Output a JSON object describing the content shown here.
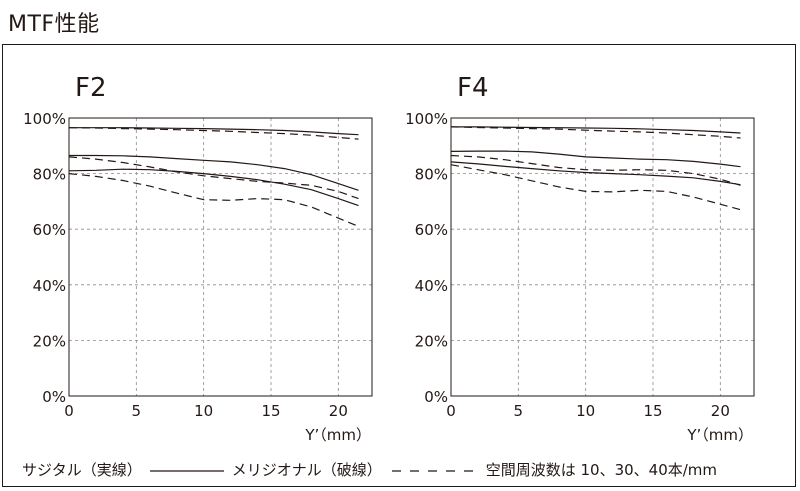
{
  "page_title": "MTF性能",
  "legend": {
    "solid_label": "サジタル（実線）",
    "dashed_label": "メリジオナル（破線）",
    "frequency_note": "空間周波数は 10、30、40本/mm"
  },
  "colors": {
    "line": "#231815",
    "grid": "#8c8c8c",
    "frame": "#231815"
  },
  "chart_data": [
    {
      "type": "line",
      "title": "F2",
      "xlabel": "Y’（mm）",
      "ylabel": "",
      "xlim": [
        0,
        22.5
      ],
      "ylim": [
        0,
        100
      ],
      "xticks": [
        0,
        5,
        10,
        15,
        20
      ],
      "yticks": [
        0,
        20,
        40,
        60,
        80,
        100
      ],
      "ytick_labels": [
        "0%",
        "20%",
        "40%",
        "60%",
        "80%",
        "100%"
      ],
      "grid": true,
      "series": [
        {
          "style": "solid",
          "x": [
            0,
            2,
            4,
            6,
            8,
            10,
            12,
            14,
            16,
            18,
            20,
            21.5
          ],
          "y": [
            96.5,
            96.5,
            96.5,
            96.4,
            96.3,
            96.2,
            96,
            95.8,
            95.5,
            95,
            94.4,
            94
          ]
        },
        {
          "style": "dashed",
          "x": [
            0,
            2,
            4,
            6,
            8,
            10,
            12,
            14,
            16,
            18,
            20,
            21.5
          ],
          "y": [
            96.5,
            96.4,
            96.2,
            96,
            95.8,
            95.5,
            95.2,
            94.8,
            94.4,
            93.8,
            93,
            92.4
          ]
        },
        {
          "style": "solid",
          "x": [
            0,
            2,
            4,
            6,
            8,
            10,
            12,
            14,
            16,
            18,
            20,
            21.5
          ],
          "y": [
            86.5,
            86.5,
            86.4,
            86,
            85.4,
            84.8,
            84.2,
            83.2,
            81.8,
            79.6,
            76.4,
            74
          ]
        },
        {
          "style": "dashed",
          "x": [
            0,
            2,
            4,
            6,
            8,
            10,
            12,
            14,
            16,
            18,
            20,
            21.5
          ],
          "y": [
            86,
            85.2,
            84,
            82.4,
            80.6,
            79.2,
            78.2,
            77.2,
            76.6,
            75.8,
            73.6,
            71
          ]
        },
        {
          "style": "solid",
          "x": [
            0,
            2,
            4,
            6,
            8,
            10,
            12,
            14,
            16,
            18,
            20,
            21.5
          ],
          "y": [
            81,
            81.2,
            81.6,
            81.4,
            80.8,
            80,
            79,
            77.8,
            76.2,
            74.2,
            71,
            68.5
          ]
        },
        {
          "style": "dashed",
          "x": [
            0,
            2,
            4,
            6,
            8,
            10,
            12,
            14,
            16,
            18,
            20,
            21.5
          ],
          "y": [
            80,
            79,
            77.5,
            75.5,
            73,
            70.6,
            70.4,
            71,
            70.6,
            68,
            64,
            61
          ]
        }
      ]
    },
    {
      "type": "line",
      "title": "F4",
      "xlabel": "Y’（mm）",
      "ylabel": "",
      "xlim": [
        0,
        22.5
      ],
      "ylim": [
        0,
        100
      ],
      "xticks": [
        0,
        5,
        10,
        15,
        20
      ],
      "yticks": [
        0,
        20,
        40,
        60,
        80,
        100
      ],
      "ytick_labels": [
        "0%",
        "20%",
        "40%",
        "60%",
        "80%",
        "100%"
      ],
      "grid": true,
      "series": [
        {
          "style": "solid",
          "x": [
            0,
            2,
            4,
            6,
            8,
            10,
            12,
            14,
            16,
            18,
            20,
            21.5
          ],
          "y": [
            96.8,
            96.8,
            96.7,
            96.6,
            96.5,
            96.4,
            96.3,
            96.1,
            95.8,
            95.5,
            95,
            94.6
          ]
        },
        {
          "style": "dashed",
          "x": [
            0,
            2,
            4,
            6,
            8,
            10,
            12,
            14,
            16,
            18,
            20,
            21.5
          ],
          "y": [
            96.8,
            96.6,
            96.4,
            96.2,
            96,
            95.6,
            95.3,
            95,
            94.6,
            94,
            93.4,
            92.8
          ]
        },
        {
          "style": "solid",
          "x": [
            0,
            2,
            4,
            6,
            8,
            10,
            12,
            14,
            16,
            18,
            20,
            21.5
          ],
          "y": [
            88,
            88.1,
            88.1,
            87.8,
            87,
            86,
            85.6,
            85.2,
            85,
            84.4,
            83.4,
            82.5
          ]
        },
        {
          "style": "dashed",
          "x": [
            0,
            2,
            4,
            6,
            8,
            10,
            12,
            14,
            16,
            18,
            20,
            21.5
          ],
          "y": [
            86.5,
            86,
            85,
            83.6,
            82.2,
            81.4,
            81.2,
            81.4,
            81.2,
            80,
            78,
            75.8
          ]
        },
        {
          "style": "solid",
          "x": [
            0,
            2,
            4,
            6,
            8,
            10,
            12,
            14,
            16,
            18,
            20,
            21.5
          ],
          "y": [
            84.2,
            83.5,
            82.6,
            81.8,
            81,
            80.4,
            80,
            79.6,
            79.1,
            78.5,
            77.2,
            76
          ]
        },
        {
          "style": "dashed",
          "x": [
            0,
            2,
            4,
            6,
            8,
            10,
            12,
            14,
            16,
            18,
            20,
            21.5
          ],
          "y": [
            83.2,
            81.4,
            79.6,
            77.4,
            75.2,
            73.6,
            73.4,
            74,
            73.6,
            71.6,
            69,
            67
          ]
        }
      ]
    }
  ]
}
